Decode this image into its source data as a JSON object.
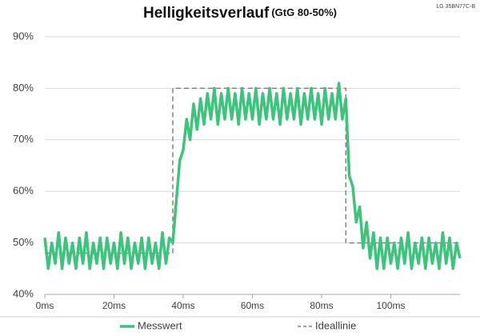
{
  "chart_data": {
    "type": "line",
    "title": "Helligkeitsverlauf",
    "subtitle": "(GtG 80-50%)",
    "corner_label": "LG 35BN77C-B",
    "xlim": [
      0,
      120
    ],
    "ylim": [
      40,
      90
    ],
    "xticks": [
      {
        "value": 0,
        "label": "0ms"
      },
      {
        "value": 20,
        "label": "20ms"
      },
      {
        "value": 40,
        "label": "40ms"
      },
      {
        "value": 60,
        "label": "60ms"
      },
      {
        "value": 80,
        "label": "80ms"
      },
      {
        "value": 100,
        "label": "100ms"
      }
    ],
    "yticks": [
      {
        "value": 40,
        "label": "40%"
      },
      {
        "value": 50,
        "label": "50%"
      },
      {
        "value": 60,
        "label": "60%"
      },
      {
        "value": 70,
        "label": "70%"
      },
      {
        "value": 80,
        "label": "80%"
      },
      {
        "value": 90,
        "label": "90%"
      }
    ],
    "grid": true,
    "legend": "bottom",
    "series": [
      {
        "name": "Ideallinie",
        "color": "#808080",
        "dashed": true,
        "x": [
          0,
          37,
          37,
          87,
          87,
          120
        ],
        "values": [
          48,
          48,
          80,
          80,
          50,
          50
        ]
      },
      {
        "name": "Messwert",
        "color": "#3cc47c",
        "dashed": false,
        "x": [
          0,
          1,
          2,
          3,
          4,
          5,
          6,
          7,
          8,
          9,
          10,
          11,
          12,
          13,
          14,
          15,
          16,
          17,
          18,
          19,
          20,
          21,
          22,
          23,
          24,
          25,
          26,
          27,
          28,
          29,
          30,
          31,
          32,
          33,
          34,
          35,
          36,
          37,
          38,
          39,
          40,
          41,
          42,
          43,
          44,
          45,
          46,
          47,
          48,
          49,
          50,
          51,
          52,
          53,
          54,
          55,
          56,
          57,
          58,
          59,
          60,
          61,
          62,
          63,
          64,
          65,
          66,
          67,
          68,
          69,
          70,
          71,
          72,
          73,
          74,
          75,
          76,
          77,
          78,
          79,
          80,
          81,
          82,
          83,
          84,
          85,
          86,
          87,
          88,
          89,
          90,
          91,
          92,
          93,
          94,
          95,
          96,
          97,
          98,
          99,
          100,
          101,
          102,
          103,
          104,
          105,
          106,
          107,
          108,
          109,
          110,
          111,
          112,
          113,
          114,
          115,
          116,
          117,
          118,
          119,
          120
        ],
        "values": [
          51,
          45,
          50,
          46,
          52,
          45,
          51,
          46,
          50,
          45,
          51,
          46,
          52,
          45,
          50,
          46,
          51,
          45,
          51,
          46,
          50,
          45,
          52,
          46,
          51,
          45,
          50,
          46,
          51,
          45,
          51,
          46,
          50,
          45,
          52,
          46,
          51,
          50,
          58,
          66,
          68,
          74,
          70,
          77,
          72,
          78,
          73,
          79,
          74,
          80,
          73,
          79,
          74,
          80,
          74,
          79,
          73,
          80,
          74,
          79,
          74,
          80,
          73,
          79,
          74,
          80,
          74,
          79,
          73,
          80,
          74,
          79,
          74,
          80,
          73,
          79,
          74,
          80,
          74,
          79,
          73,
          80,
          74,
          79,
          74,
          81,
          74,
          78,
          63,
          61,
          54,
          57,
          49,
          54,
          47,
          52,
          45,
          51,
          45,
          51,
          46,
          50,
          45,
          51,
          46,
          52,
          45,
          50,
          46,
          51,
          45,
          51,
          46,
          50,
          45,
          52,
          46,
          51,
          45,
          50,
          47
        ]
      }
    ]
  }
}
